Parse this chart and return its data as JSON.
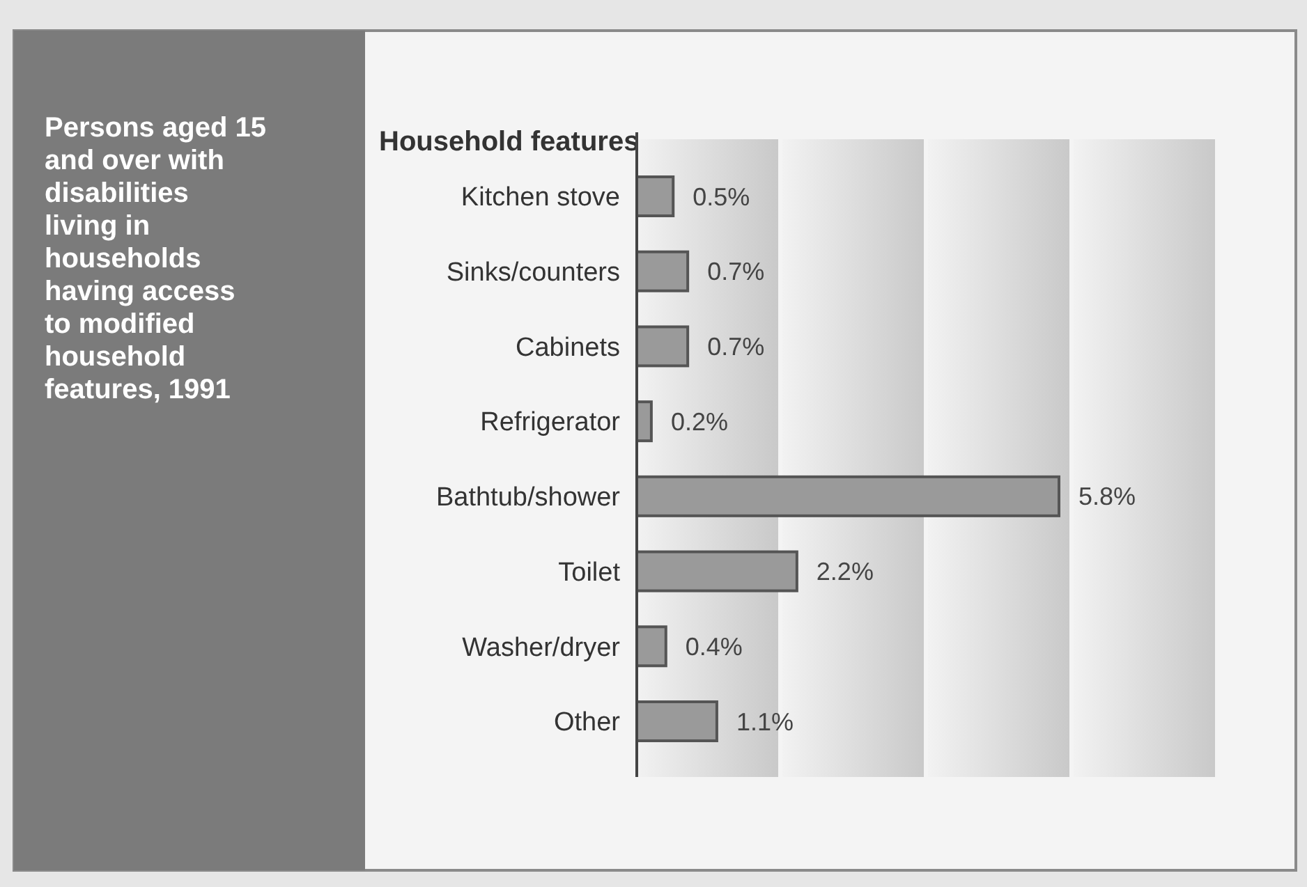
{
  "chart_data": {
    "type": "bar",
    "orientation": "horizontal",
    "title": "Household features",
    "subtitle": "Persons aged 15 and over with disabilities living in households having access to modified household features, 1991",
    "categories": [
      "Kitchen stove",
      "Sinks/counters",
      "Cabinets",
      "Refrigerator",
      "Bathtub/shower",
      "Toilet",
      "Washer/dryer",
      "Other"
    ],
    "values": [
      0.5,
      0.7,
      0.7,
      0.2,
      5.8,
      2.2,
      0.4,
      1.1
    ],
    "value_labels": [
      "0.5%",
      "0.7%",
      "0.7%",
      "0.2%",
      "5.8%",
      "2.2%",
      "0.4%",
      "1.1%"
    ],
    "color": "#9a9a9a",
    "tick_labels": "y"
  }
}
